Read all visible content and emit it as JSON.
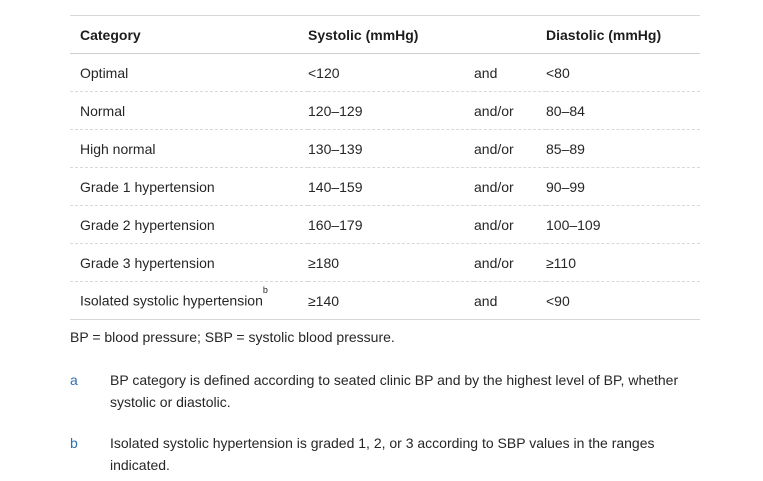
{
  "table": {
    "headers": [
      "Category",
      "Systolic (mmHg)",
      "",
      "Diastolic (mmHg)"
    ],
    "rows": [
      {
        "category": "Optimal",
        "systolic": "<120",
        "conj": "and",
        "diastolic": "<80"
      },
      {
        "category": "Normal",
        "systolic": "120–129",
        "conj": "and/or",
        "diastolic": "80–84"
      },
      {
        "category": "High normal",
        "systolic": "130–139",
        "conj": "and/or",
        "diastolic": "85–89"
      },
      {
        "category": "Grade 1 hypertension",
        "systolic": "140–159",
        "conj": "and/or",
        "diastolic": "90–99"
      },
      {
        "category": "Grade 2 hypertension",
        "systolic": "160–179",
        "conj": "and/or",
        "diastolic": "100–109"
      },
      {
        "category": "Grade 3 hypertension",
        "systolic": "≥180",
        "conj": "and/or",
        "diastolic": "≥110"
      },
      {
        "category": "Isolated systolic hypertension",
        "category_sup": "b",
        "systolic": "≥140",
        "conj": "and",
        "diastolic": "<90"
      }
    ]
  },
  "abbreviations": "BP = blood pressure; SBP = systolic blood pressure.",
  "footnotes": [
    {
      "label": "a",
      "text": "BP category is defined according to seated clinic BP and by the highest level of BP, whether systolic or diastolic."
    },
    {
      "label": "b",
      "text": "Isolated systolic hypertension is graded 1, 2, or 3 according to SBP values in the ranges indicated."
    }
  ],
  "colors": {
    "footnote_label": "#2f6fb0",
    "text": "#222222",
    "rule": "#d8d8d8"
  }
}
